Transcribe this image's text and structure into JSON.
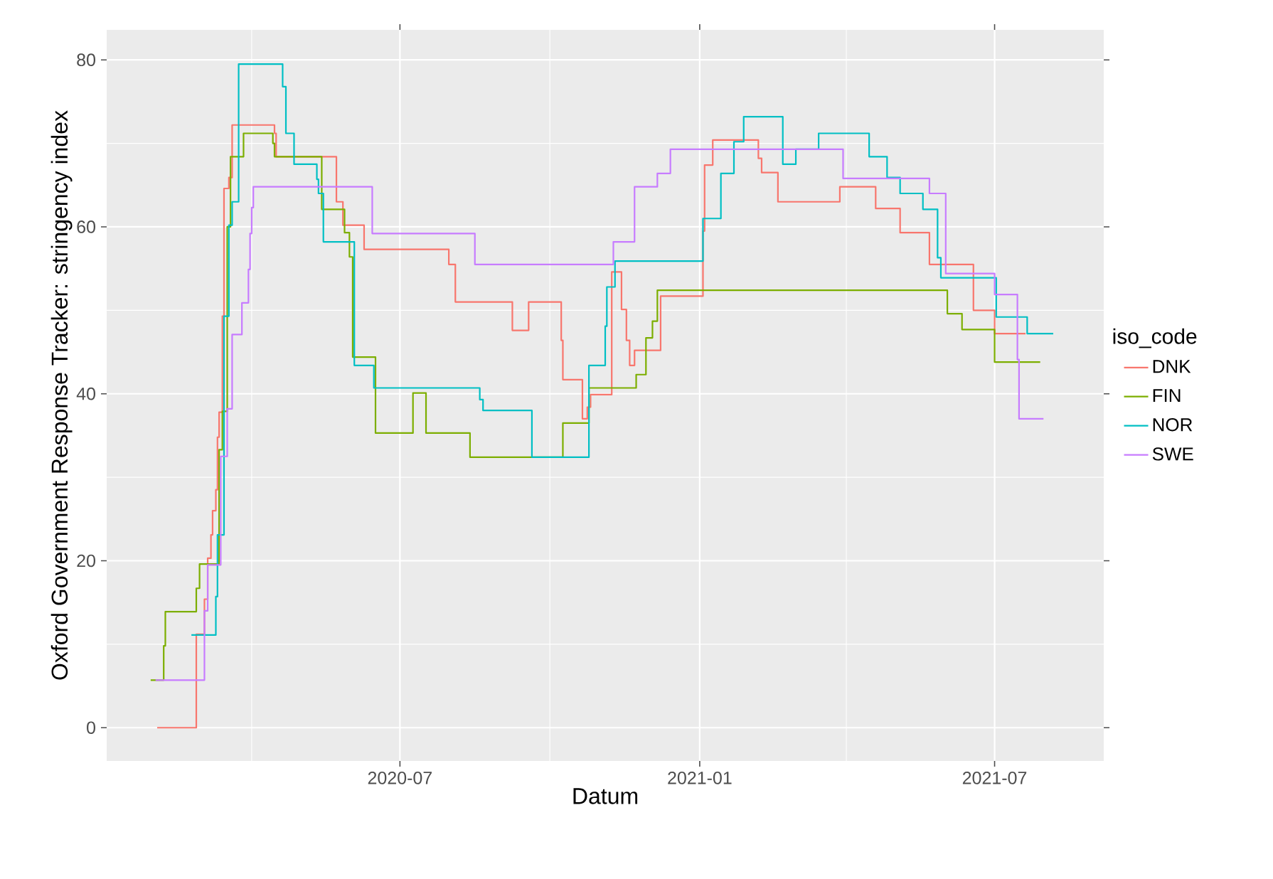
{
  "chart_data": {
    "type": "step",
    "xlabel": "Datum",
    "ylabel": "Oxford Government Response Tracker: stringency index",
    "legend_title": "iso_code",
    "legend": "right",
    "grid": true,
    "xlim": [
      "2020-01-03",
      "2021-09-06"
    ],
    "ylim": [
      -3.98,
      83.6
    ],
    "xticks": [
      {
        "value": "2020-04-01",
        "label": null
      },
      {
        "value": "2020-07-01",
        "label": "2020-07"
      },
      {
        "value": "2020-10-01",
        "label": null
      },
      {
        "value": "2021-01-01",
        "label": "2021-01"
      },
      {
        "value": "2021-04-01",
        "label": null
      },
      {
        "value": "2021-07-01",
        "label": "2021-07"
      }
    ],
    "yticks": [
      0,
      {
        "value": 10,
        "label": null
      },
      20,
      {
        "value": 30,
        "label": null
      },
      40,
      {
        "value": 50,
        "label": null
      },
      60,
      {
        "value": 70,
        "label": null
      },
      80
    ],
    "series": [
      {
        "name": "DNK",
        "color": "#F8766D",
        "x": [
          "2020-02-03",
          "2020-02-27",
          "2020-03-03",
          "2020-03-05",
          "2020-03-07",
          "2020-03-08",
          "2020-03-10",
          "2020-03-11",
          "2020-03-12",
          "2020-03-14",
          "2020-03-15",
          "2020-03-18",
          "2020-03-20",
          "2020-04-15",
          "2020-04-16",
          "2020-05-23",
          "2020-05-27",
          "2020-06-09",
          "2020-07-31",
          "2020-08-04",
          "2020-09-08",
          "2020-09-18",
          "2020-10-08",
          "2020-10-09",
          "2020-10-21",
          "2020-10-24",
          "2020-10-26",
          "2020-11-08",
          "2020-11-14",
          "2020-11-17",
          "2020-11-19",
          "2020-11-22",
          "2020-12-08",
          "2021-01-03",
          "2021-01-04",
          "2021-01-09",
          "2021-02-06",
          "2021-02-08",
          "2021-02-18",
          "2021-03-28",
          "2021-04-19",
          "2021-05-04",
          "2021-05-22",
          "2021-06-18",
          "2021-07-01",
          "2021-07-20"
        ],
        "values": [
          0,
          11.2,
          15.4,
          20.3,
          23.1,
          26,
          28.5,
          34.8,
          37.8,
          49.3,
          64.6,
          65.9,
          72.2,
          71.2,
          68.4,
          63,
          60.2,
          57.3,
          55.5,
          51,
          47.6,
          51,
          46.4,
          41.7,
          37,
          38.4,
          39.9,
          54.6,
          50.1,
          46.4,
          43.4,
          45.2,
          51.7,
          59.5,
          67.4,
          70.4,
          68.2,
          66.5,
          63,
          64.8,
          62.2,
          59.3,
          55.5,
          50,
          47.2,
          47.2
        ]
      },
      {
        "name": "FIN",
        "color": "#7CAE00",
        "x": [
          "2020-01-30",
          "2020-02-07",
          "2020-02-08",
          "2020-02-27",
          "2020-02-29",
          "2020-03-12",
          "2020-03-14",
          "2020-03-17",
          "2020-03-19",
          "2020-03-27",
          "2020-04-14",
          "2020-04-15",
          "2020-05-14",
          "2020-05-28",
          "2020-05-31",
          "2020-06-02",
          "2020-06-16",
          "2020-07-09",
          "2020-07-17",
          "2020-08-13",
          "2020-10-09",
          "2020-10-25",
          "2020-11-23",
          "2020-11-29",
          "2020-12-03",
          "2020-12-06",
          "2021-06-02",
          "2021-06-11",
          "2021-07-01",
          "2021-07-29"
        ],
        "values": [
          5.7,
          9.8,
          13.9,
          16.7,
          19.6,
          33.3,
          37.9,
          60,
          68.4,
          71.2,
          70,
          68.4,
          62.1,
          59.3,
          56.4,
          44.4,
          35.3,
          40.1,
          35.3,
          32.4,
          36.5,
          40.7,
          42.3,
          46.7,
          48.7,
          52.4,
          49.6,
          47.7,
          43.8,
          43.8
        ]
      },
      {
        "name": "NOR",
        "color": "#00BFC4",
        "x": [
          "2020-02-24",
          "2020-03-10",
          "2020-03-11",
          "2020-03-15",
          "2020-03-18",
          "2020-03-20",
          "2020-03-24",
          "2020-04-20",
          "2020-04-22",
          "2020-04-27",
          "2020-05-11",
          "2020-05-12",
          "2020-05-15",
          "2020-06-03",
          "2020-06-15",
          "2020-08-19",
          "2020-08-21",
          "2020-09-20",
          "2020-10-25",
          "2020-11-04",
          "2020-11-05",
          "2020-11-10",
          "2021-01-03",
          "2021-01-14",
          "2021-01-22",
          "2021-01-28",
          "2021-02-21",
          "2021-03-01",
          "2021-03-15",
          "2021-04-15",
          "2021-04-26",
          "2021-05-04",
          "2021-05-18",
          "2021-05-27",
          "2021-05-29",
          "2021-07-02",
          "2021-07-21",
          "2021-08-06"
        ],
        "values": [
          11.1,
          15.7,
          23.1,
          49.3,
          60.2,
          63,
          79.5,
          76.8,
          71.2,
          67.5,
          65.7,
          64,
          58.2,
          43.4,
          40.7,
          39.3,
          38,
          32.4,
          43.4,
          48.1,
          52.8,
          55.9,
          61,
          66.4,
          70.2,
          73.2,
          67.5,
          69.3,
          71.2,
          68.4,
          65.9,
          64,
          62.1,
          56.3,
          53.9,
          49.2,
          47.2,
          47.2
        ]
      },
      {
        "name": "SWE",
        "color": "#C77CFF",
        "x": [
          "2020-02-02",
          "2020-03-03",
          "2020-03-05",
          "2020-03-13",
          "2020-03-17",
          "2020-03-20",
          "2020-03-26",
          "2020-03-30",
          "2020-03-31",
          "2020-04-01",
          "2020-04-02",
          "2020-06-14",
          "2020-08-16",
          "2020-11-09",
          "2020-11-22",
          "2020-12-06",
          "2020-12-14",
          "2021-03-30",
          "2021-05-22",
          "2021-06-01",
          "2021-07-01",
          "2021-07-15",
          "2021-07-16",
          "2021-07-31"
        ],
        "values": [
          5.7,
          14,
          19.5,
          32.5,
          38.2,
          47.1,
          50.9,
          54.9,
          59.2,
          62.3,
          64.8,
          59.2,
          55.5,
          58.2,
          64.8,
          66.4,
          69.3,
          65.8,
          64,
          54.4,
          51.9,
          44.1,
          37,
          37
        ]
      }
    ]
  }
}
